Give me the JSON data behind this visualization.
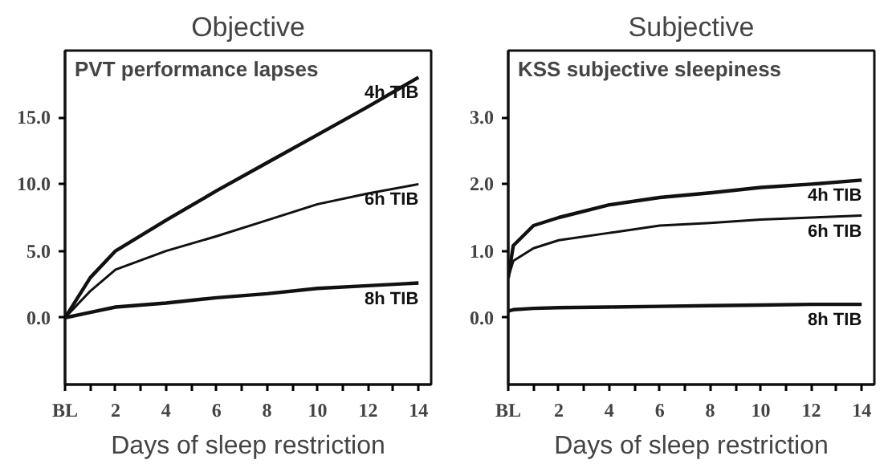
{
  "chart_data": [
    {
      "type": "line",
      "title": "Objective",
      "subtitle": "PVT performance lapses",
      "xlabel": "Days of sleep restriction",
      "xlim": [
        0,
        14.5
      ],
      "ylim": [
        -5,
        20
      ],
      "xticks": [
        {
          "value": 0,
          "label": "BL"
        },
        {
          "value": 1,
          "label": null
        },
        2,
        {
          "value": 3,
          "label": null
        },
        4,
        {
          "value": 5,
          "label": null
        },
        6,
        {
          "value": 7,
          "label": null
        },
        8,
        {
          "value": 9,
          "label": null
        },
        10,
        {
          "value": 11,
          "label": null
        },
        12,
        {
          "value": 13,
          "label": null
        },
        14
      ],
      "yticks": [
        {
          "value": 0,
          "label": "0.0"
        },
        {
          "value": 5,
          "label": "5.0"
        },
        {
          "value": 10,
          "label": "10.0"
        },
        {
          "value": 15,
          "label": "15.0"
        }
      ],
      "x": [
        0,
        1,
        2,
        4,
        6,
        8,
        10,
        12,
        14
      ],
      "grid": false,
      "marker": "none",
      "line_style": "solid",
      "series": [
        {
          "name": "4h TIB",
          "color": "#111111",
          "values": [
            0,
            3.0,
            5.0,
            7.3,
            9.5,
            11.6,
            13.7,
            15.8,
            18.0
          ]
        },
        {
          "name": "6h TIB",
          "color": "#111111",
          "values": [
            0,
            2.0,
            3.6,
            5.0,
            6.1,
            7.3,
            8.5,
            9.3,
            10.0
          ]
        },
        {
          "name": "8h TIB",
          "color": "#111111",
          "values": [
            0,
            0.4,
            0.8,
            1.1,
            1.5,
            1.8,
            2.2,
            2.4,
            2.6
          ]
        }
      ]
    },
    {
      "type": "line",
      "title": "Subjective",
      "subtitle": "KSS subjective sleepiness",
      "xlabel": "Days of sleep restriction",
      "xlim": [
        0,
        14.5
      ],
      "ylim": [
        -1,
        4
      ],
      "xticks": [
        {
          "value": 0,
          "label": "BL"
        },
        {
          "value": 1,
          "label": null
        },
        2,
        {
          "value": 3,
          "label": null
        },
        4,
        {
          "value": 5,
          "label": null
        },
        6,
        {
          "value": 7,
          "label": null
        },
        8,
        {
          "value": 9,
          "label": null
        },
        10,
        {
          "value": 11,
          "label": null
        },
        12,
        {
          "value": 13,
          "label": null
        },
        14
      ],
      "yticks": [
        {
          "value": 0,
          "label": "0.0"
        },
        {
          "value": 1,
          "label": "1.0"
        },
        {
          "value": 2,
          "label": "2.0"
        },
        {
          "value": 3,
          "label": "3.0"
        }
      ],
      "x": [
        0,
        0.2,
        1,
        2,
        4,
        6,
        8,
        10,
        12,
        14
      ],
      "grid": false,
      "marker": "none",
      "line_style": "solid",
      "series": [
        {
          "name": "4h TIB",
          "color": "#111111",
          "values": [
            0.6,
            1.08,
            1.38,
            1.5,
            1.69,
            1.8,
            1.87,
            1.95,
            2.0,
            2.06
          ]
        },
        {
          "name": "6h TIB",
          "color": "#111111",
          "values": [
            0.6,
            0.85,
            1.04,
            1.16,
            1.27,
            1.38,
            1.42,
            1.47,
            1.5,
            1.53
          ]
        },
        {
          "name": "8h TIB",
          "color": "#111111",
          "values": [
            0.1,
            0.12,
            0.14,
            0.15,
            0.16,
            0.17,
            0.18,
            0.19,
            0.2,
            0.2
          ]
        }
      ]
    }
  ]
}
